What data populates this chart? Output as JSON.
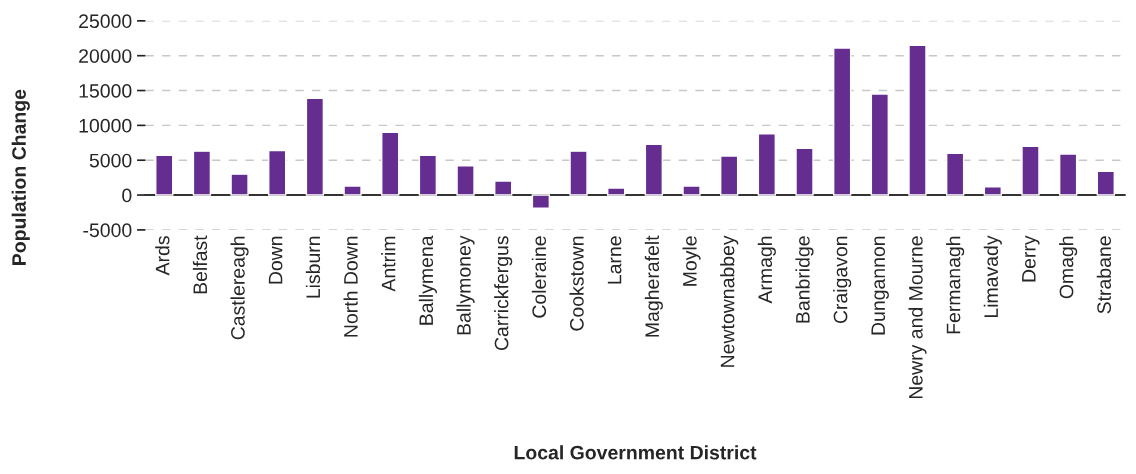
{
  "chart_data": {
    "type": "bar",
    "xlabel": "Local Government District",
    "ylabel": "Population Change",
    "categories": [
      "Ards",
      "Belfast",
      "Castlereagh",
      "Down",
      "Lisburn",
      "North Down",
      "Antrim",
      "Ballymena",
      "Ballymoney",
      "Carrickfergus",
      "Coleraine",
      "Cookstown",
      "Larne",
      "Magherafelt",
      "Moyle",
      "Newtownabbey",
      "Armagh",
      "Banbridge",
      "Craigavon",
      "Dungannon",
      "Newry and Mourne",
      "Fermanagh",
      "Limavady",
      "Derry",
      "Omagh",
      "Strabane"
    ],
    "values": [
      5700,
      6300,
      3000,
      6400,
      13900,
      1300,
      9000,
      5700,
      4200,
      2000,
      -1900,
      6300,
      1000,
      7300,
      1300,
      5600,
      8800,
      6700,
      21100,
      14500,
      21500,
      6000,
      1200,
      7000,
      5900,
      3400
    ],
    "color": "#652d90",
    "ylim": [
      -5000,
      25000
    ],
    "yticks": [
      -5000,
      0,
      5000,
      10000,
      15000,
      20000,
      25000
    ],
    "grid": "y"
  }
}
